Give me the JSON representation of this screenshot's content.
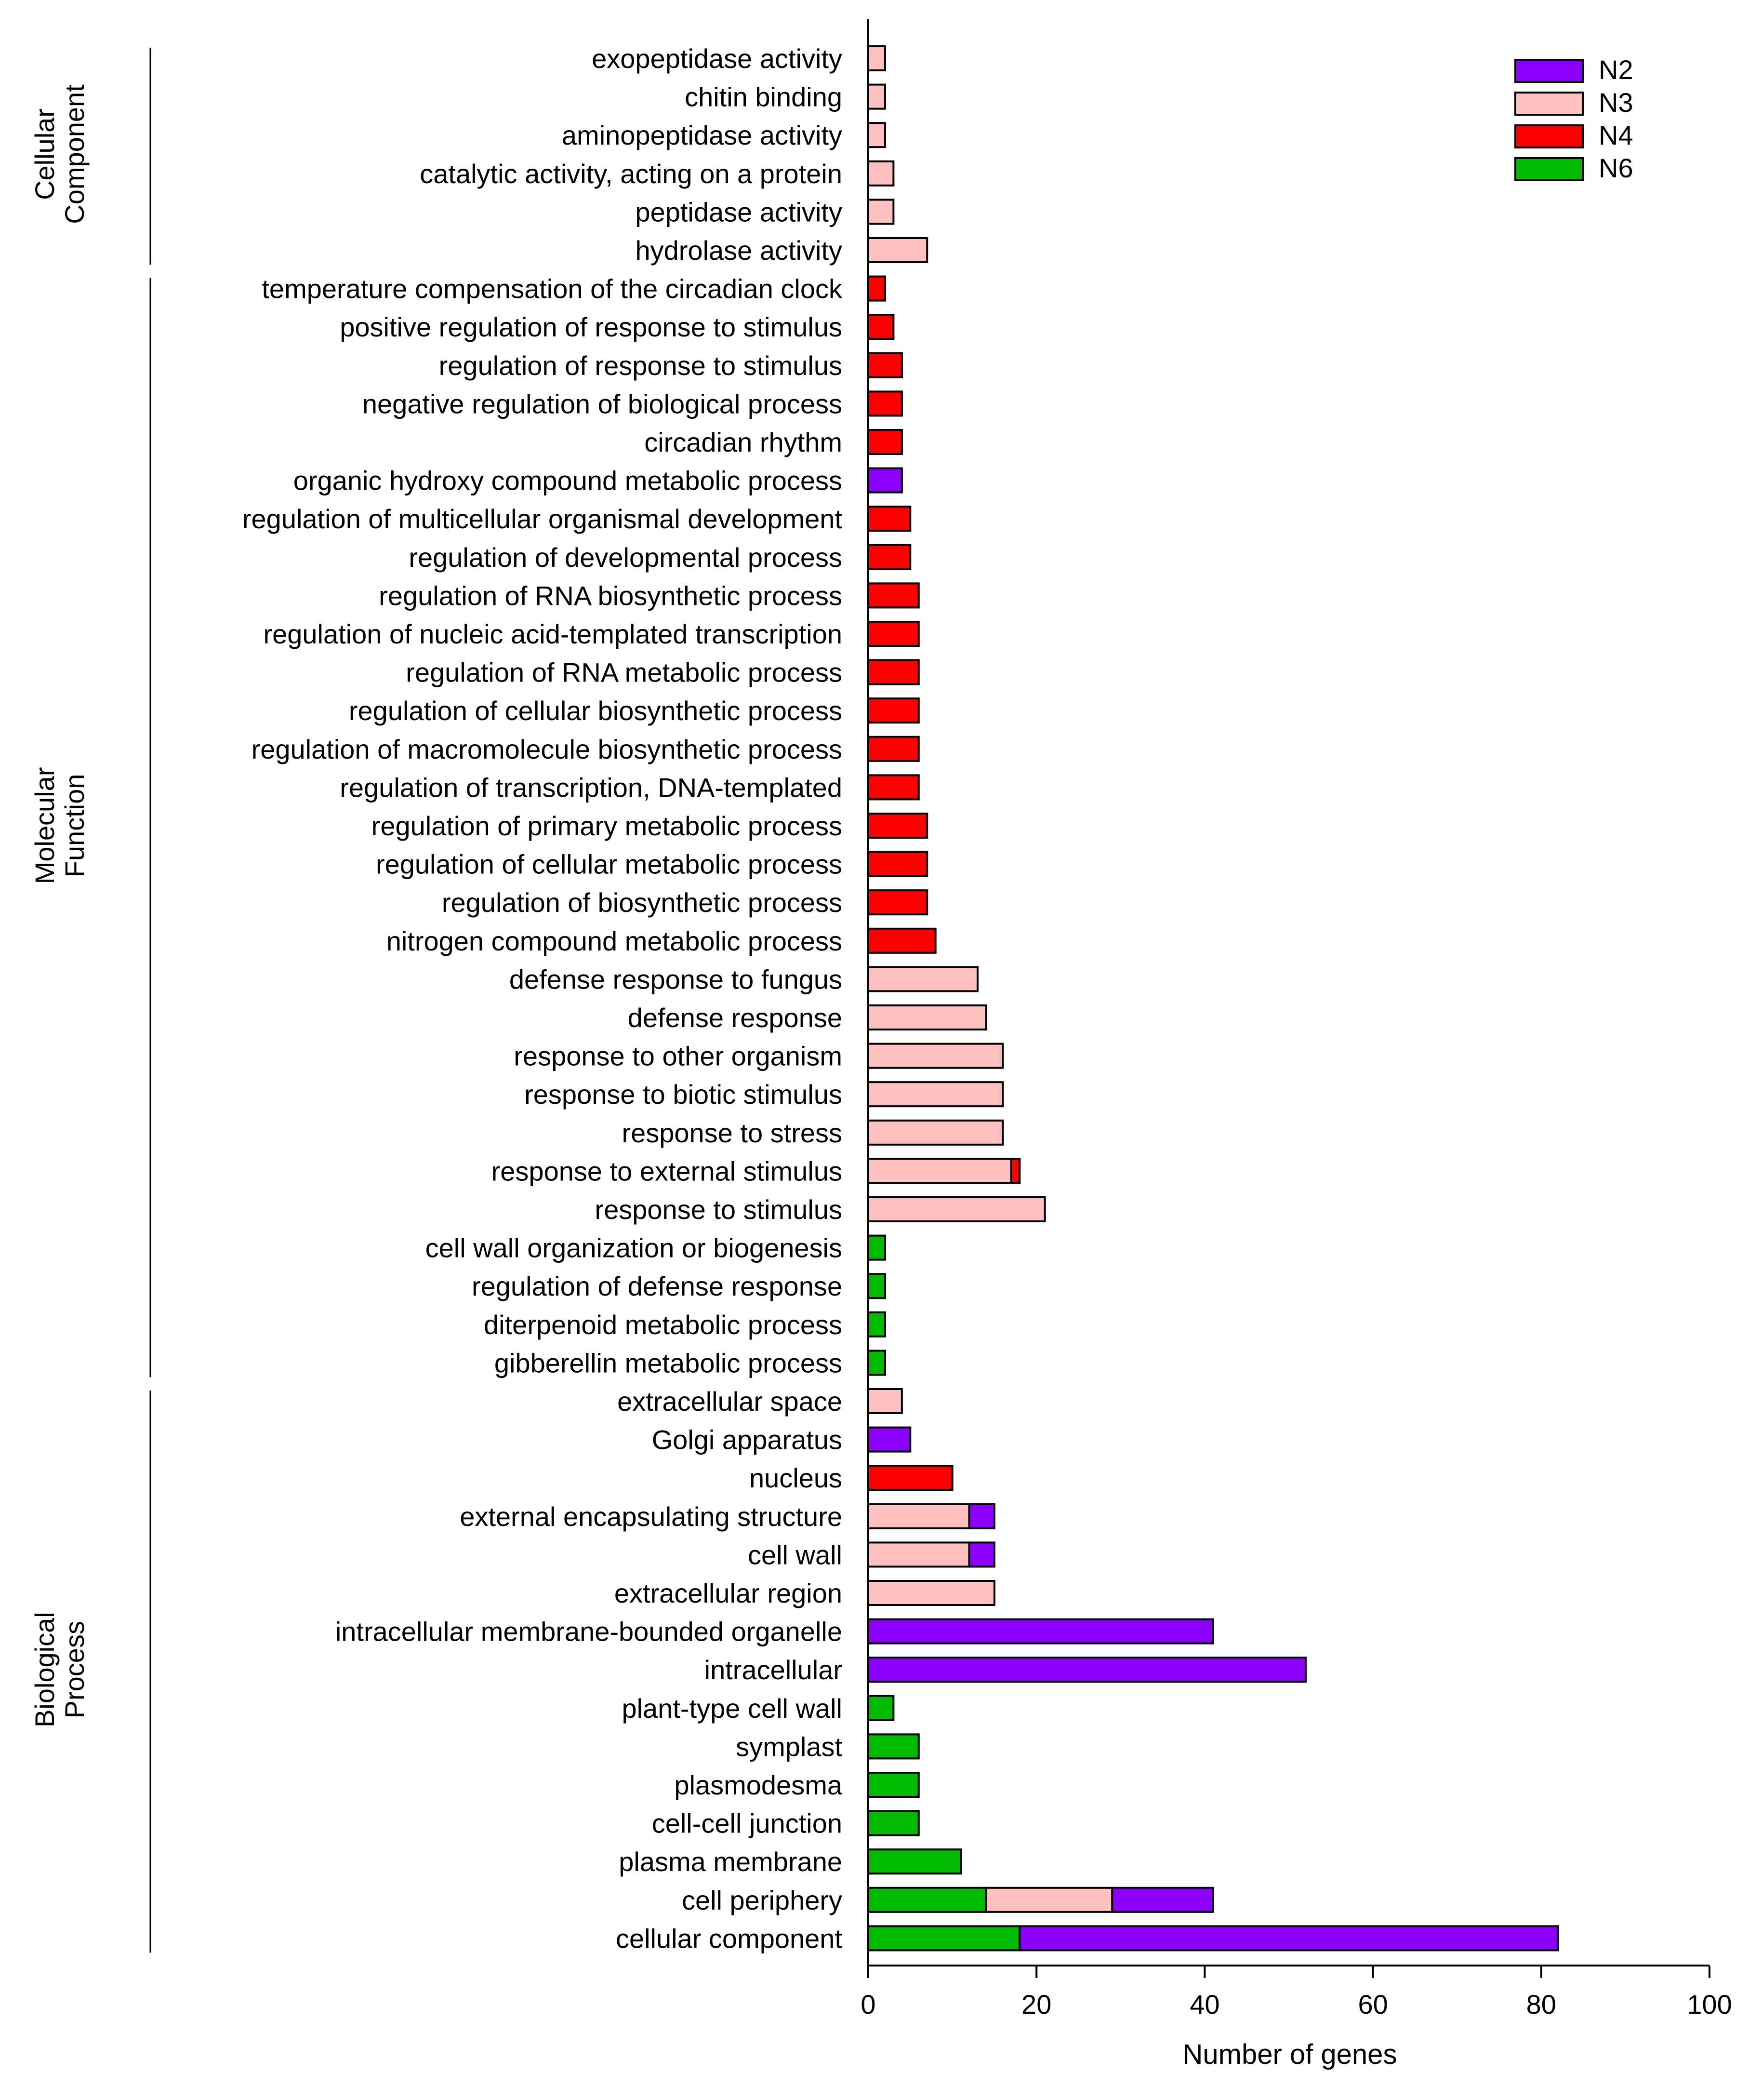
{
  "chart_data": {
    "type": "bar",
    "orientation": "horizontal",
    "stacked": true,
    "xlabel": "Number of genes",
    "xlim": [
      0,
      100
    ],
    "xticks": [
      0,
      20,
      40,
      60,
      80,
      100
    ],
    "legend_position": "top-right",
    "series": [
      {
        "name": "N2",
        "color": "#8B00FF"
      },
      {
        "name": "N3",
        "color": "#FFC0C0"
      },
      {
        "name": "N4",
        "color": "#FF0000"
      },
      {
        "name": "N6",
        "color": "#00BB00"
      }
    ],
    "groups": [
      {
        "label_lines": [
          "Cellular",
          "Component"
        ],
        "first": "exopeptidase activity",
        "last": "hydrolase activity"
      },
      {
        "label_lines": [
          "Molecular",
          "Function"
        ],
        "first": "temperature compensation of the circadian clock",
        "last": "gibberellin metabolic process"
      },
      {
        "label_lines": [
          "Biological",
          "Process"
        ],
        "first": "extracellular space",
        "last": "cellular component"
      }
    ],
    "categories": [
      {
        "label": "exopeptidase activity",
        "segments": [
          {
            "series": "N3",
            "value": 2
          }
        ]
      },
      {
        "label": "chitin binding",
        "segments": [
          {
            "series": "N3",
            "value": 2
          }
        ]
      },
      {
        "label": "aminopeptidase activity",
        "segments": [
          {
            "series": "N3",
            "value": 2
          }
        ]
      },
      {
        "label": "catalytic activity, acting on a protein",
        "segments": [
          {
            "series": "N3",
            "value": 3
          }
        ]
      },
      {
        "label": "peptidase activity",
        "segments": [
          {
            "series": "N3",
            "value": 3
          }
        ]
      },
      {
        "label": "hydrolase activity",
        "segments": [
          {
            "series": "N3",
            "value": 7
          }
        ]
      },
      {
        "label": "temperature compensation of the circadian clock",
        "segments": [
          {
            "series": "N4",
            "value": 2
          }
        ]
      },
      {
        "label": "positive regulation of response to stimulus",
        "segments": [
          {
            "series": "N4",
            "value": 3
          }
        ]
      },
      {
        "label": "regulation of response to stimulus",
        "segments": [
          {
            "series": "N4",
            "value": 4
          }
        ]
      },
      {
        "label": "negative regulation of biological process",
        "segments": [
          {
            "series": "N4",
            "value": 4
          }
        ]
      },
      {
        "label": "circadian rhythm",
        "segments": [
          {
            "series": "N4",
            "value": 4
          }
        ]
      },
      {
        "label": "organic hydroxy compound metabolic process",
        "segments": [
          {
            "series": "N2",
            "value": 4
          }
        ]
      },
      {
        "label": "regulation of multicellular organismal development",
        "segments": [
          {
            "series": "N4",
            "value": 5
          }
        ]
      },
      {
        "label": "regulation of developmental process",
        "segments": [
          {
            "series": "N4",
            "value": 5
          }
        ]
      },
      {
        "label": "regulation of RNA biosynthetic process",
        "segments": [
          {
            "series": "N4",
            "value": 6
          }
        ]
      },
      {
        "label": "regulation of nucleic acid-templated transcription",
        "segments": [
          {
            "series": "N4",
            "value": 6
          }
        ]
      },
      {
        "label": "regulation of RNA metabolic process",
        "segments": [
          {
            "series": "N4",
            "value": 6
          }
        ]
      },
      {
        "label": "regulation of cellular biosynthetic process",
        "segments": [
          {
            "series": "N4",
            "value": 6
          }
        ]
      },
      {
        "label": "regulation of macromolecule biosynthetic process",
        "segments": [
          {
            "series": "N4",
            "value": 6
          }
        ]
      },
      {
        "label": "regulation of transcription, DNA-templated",
        "segments": [
          {
            "series": "N4",
            "value": 6
          }
        ]
      },
      {
        "label": "regulation of primary metabolic process",
        "segments": [
          {
            "series": "N4",
            "value": 7
          }
        ]
      },
      {
        "label": "regulation of cellular metabolic process",
        "segments": [
          {
            "series": "N4",
            "value": 7
          }
        ]
      },
      {
        "label": "regulation of biosynthetic process",
        "segments": [
          {
            "series": "N4",
            "value": 7
          }
        ]
      },
      {
        "label": "nitrogen compound metabolic process",
        "segments": [
          {
            "series": "N4",
            "value": 8
          }
        ]
      },
      {
        "label": "defense response to fungus",
        "segments": [
          {
            "series": "N3",
            "value": 13
          }
        ]
      },
      {
        "label": "defense response",
        "segments": [
          {
            "series": "N3",
            "value": 14
          }
        ]
      },
      {
        "label": "response to other organism",
        "segments": [
          {
            "series": "N3",
            "value": 16
          }
        ]
      },
      {
        "label": "response to biotic stimulus",
        "segments": [
          {
            "series": "N3",
            "value": 16
          }
        ]
      },
      {
        "label": "response to stress",
        "segments": [
          {
            "series": "N3",
            "value": 16
          }
        ]
      },
      {
        "label": "response to external stimulus",
        "segments": [
          {
            "series": "N3",
            "value": 17
          },
          {
            "series": "N4",
            "value": 1
          }
        ]
      },
      {
        "label": "response to stimulus",
        "segments": [
          {
            "series": "N3",
            "value": 21
          }
        ]
      },
      {
        "label": "cell wall organization or biogenesis",
        "segments": [
          {
            "series": "N6",
            "value": 2
          }
        ]
      },
      {
        "label": "regulation of defense response",
        "segments": [
          {
            "series": "N6",
            "value": 2
          }
        ]
      },
      {
        "label": "diterpenoid metabolic process",
        "segments": [
          {
            "series": "N6",
            "value": 2
          }
        ]
      },
      {
        "label": "gibberellin metabolic process",
        "segments": [
          {
            "series": "N6",
            "value": 2
          }
        ]
      },
      {
        "label": "extracellular space",
        "segments": [
          {
            "series": "N3",
            "value": 4
          }
        ]
      },
      {
        "label": "Golgi apparatus",
        "segments": [
          {
            "series": "N2",
            "value": 5
          }
        ]
      },
      {
        "label": "nucleus",
        "segments": [
          {
            "series": "N4",
            "value": 10
          }
        ]
      },
      {
        "label": "external encapsulating structure",
        "segments": [
          {
            "series": "N3",
            "value": 12
          },
          {
            "series": "N2",
            "value": 3
          }
        ]
      },
      {
        "label": "cell wall",
        "segments": [
          {
            "series": "N3",
            "value": 12
          },
          {
            "series": "N2",
            "value": 3
          }
        ]
      },
      {
        "label": "extracellular region",
        "segments": [
          {
            "series": "N3",
            "value": 15
          }
        ]
      },
      {
        "label": "intracellular membrane-bounded organelle",
        "segments": [
          {
            "series": "N2",
            "value": 41
          }
        ]
      },
      {
        "label": "intracellular",
        "segments": [
          {
            "series": "N2",
            "value": 52
          }
        ]
      },
      {
        "label": "plant-type cell wall",
        "segments": [
          {
            "series": "N6",
            "value": 3
          }
        ]
      },
      {
        "label": "symplast",
        "segments": [
          {
            "series": "N6",
            "value": 6
          }
        ]
      },
      {
        "label": "plasmodesma",
        "segments": [
          {
            "series": "N6",
            "value": 6
          }
        ]
      },
      {
        "label": "cell-cell junction",
        "segments": [
          {
            "series": "N6",
            "value": 6
          }
        ]
      },
      {
        "label": "plasma membrane",
        "segments": [
          {
            "series": "N6",
            "value": 11
          }
        ]
      },
      {
        "label": "cell periphery",
        "segments": [
          {
            "series": "N6",
            "value": 14
          },
          {
            "series": "N3",
            "value": 15
          },
          {
            "series": "N2",
            "value": 12
          }
        ]
      },
      {
        "label": "cellular component",
        "segments": [
          {
            "series": "N6",
            "value": 18
          },
          {
            "series": "N2",
            "value": 64
          }
        ]
      }
    ]
  }
}
